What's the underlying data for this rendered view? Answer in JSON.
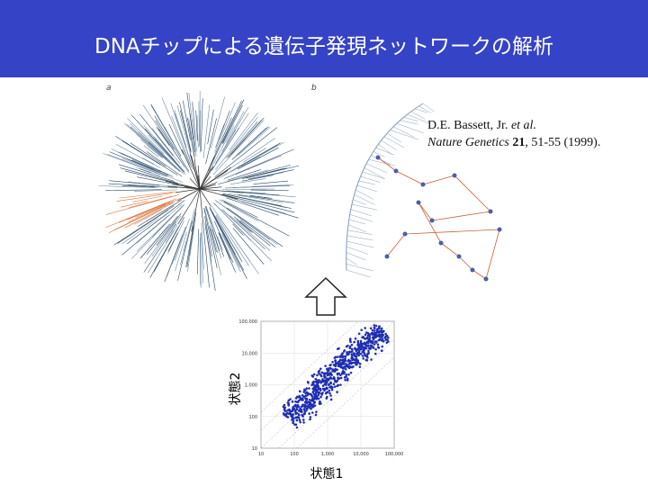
{
  "header": {
    "title": "DNAチップによる遺伝子発現ネットワークの解析"
  },
  "figure": {
    "panel_a_label": "a",
    "panel_b_label": "b"
  },
  "citation": {
    "authors": "D.E. Bassett, Jr.",
    "et_al": "et al.",
    "journal": "Nature Genetics",
    "volume": "21",
    "pages_year": ", 51-55 (1999)."
  },
  "scatter_plot": {
    "y_axis_label": "状態2",
    "x_axis_label": "状態1",
    "y_tick_labels": [
      "100,000",
      "10,000",
      "1,000",
      "100",
      "10"
    ],
    "x_tick_labels": [
      "10",
      "100",
      "1,000",
      "10,000",
      "100,000"
    ]
  }
}
